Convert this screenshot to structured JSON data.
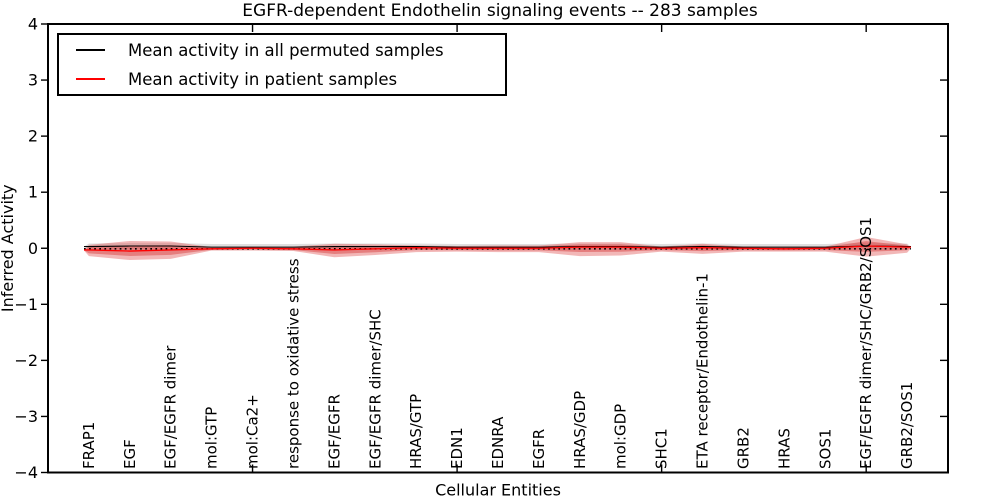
{
  "chart_data": {
    "type": "area",
    "title": "EGFR-dependent Endothelin signaling events -- 283 samples",
    "xlabel": "Cellular Entities",
    "ylabel": "Inferred Activity",
    "ylim": [
      -4,
      4
    ],
    "xlim": [
      0,
      22
    ],
    "yticks": [
      -4,
      -3,
      -2,
      -1,
      0,
      1,
      2,
      3,
      4
    ],
    "xticks": [
      5,
      10,
      15,
      20
    ],
    "grid": false,
    "legend_position": "upper left",
    "legend": [
      {
        "label": "Mean activity in all permuted samples",
        "color": "#000000"
      },
      {
        "label": "Mean activity in patient samples",
        "color": "#ff0000"
      }
    ],
    "categories": [
      "FRAP1",
      "EGF",
      "EGF/EGFR dimer",
      "mol:GTP",
      "mol:Ca2+",
      "response to oxidative stress",
      "EGF/EGFR",
      "EGF/EGFR dimer/SHC",
      "HRAS/GTP",
      "EDN1",
      "EDNRA",
      "EGFR",
      "HRAS/GDP",
      "mol:GDP",
      "SHC1",
      "ETA receptor/Endothelin-1",
      "GRB2",
      "HRAS",
      "SOS1",
      "EGF/EGFR dimer/SHC/GRB2/SOS1",
      "GRB2/SOS1"
    ],
    "series": [
      {
        "name": "Mean activity in all permuted samples",
        "color": "#000000",
        "values": [
          0.03,
          0.04,
          0.04,
          0.02,
          0.02,
          0.02,
          0.03,
          0.03,
          0.03,
          0.02,
          0.02,
          0.02,
          0.03,
          0.03,
          0.02,
          0.03,
          0.02,
          0.02,
          0.02,
          0.04,
          0.03
        ]
      },
      {
        "name": "Mean activity in patient samples",
        "color": "#ff0000",
        "values": [
          -0.03,
          -0.05,
          -0.03,
          -0.01,
          0.0,
          -0.01,
          -0.03,
          -0.01,
          0.01,
          0.0,
          0.0,
          0.0,
          0.02,
          0.02,
          0.0,
          0.01,
          0.0,
          -0.01,
          0.0,
          0.04,
          0.02
        ]
      },
      {
        "name": "Patient sample spread upper bound",
        "color": "#f0a0a0",
        "values": [
          0.06,
          0.13,
          0.12,
          0.02,
          0.02,
          0.03,
          0.08,
          0.07,
          0.05,
          0.04,
          0.05,
          0.05,
          0.11,
          0.11,
          0.03,
          0.08,
          0.03,
          0.03,
          0.03,
          0.2,
          0.07
        ]
      },
      {
        "name": "Patient sample spread lower bound",
        "color": "#f0a0a0",
        "values": [
          -0.14,
          -0.21,
          -0.19,
          -0.04,
          -0.04,
          -0.05,
          -0.16,
          -0.12,
          -0.07,
          -0.06,
          -0.07,
          -0.07,
          -0.14,
          -0.13,
          -0.06,
          -0.1,
          -0.06,
          -0.06,
          -0.06,
          -0.15,
          -0.08
        ]
      },
      {
        "name": "Permuted sample spread half-width",
        "color": "#c8c8c8",
        "values": [
          0.055,
          0.055,
          0.055,
          0.055,
          0.055,
          0.055,
          0.055,
          0.055,
          0.055,
          0.055,
          0.055,
          0.055,
          0.055,
          0.055,
          0.055,
          0.055,
          0.055,
          0.055,
          0.055,
          0.055,
          0.055
        ]
      }
    ],
    "reference_dotted_line_y": -0.01,
    "colors": {
      "patient_band_outer": "#e26060",
      "patient_band_inner": "#d84545",
      "permuted_band": "#aaaaaa",
      "patient_line": "#ff0000",
      "permuted_line": "#000000",
      "frame": "#000000"
    }
  }
}
